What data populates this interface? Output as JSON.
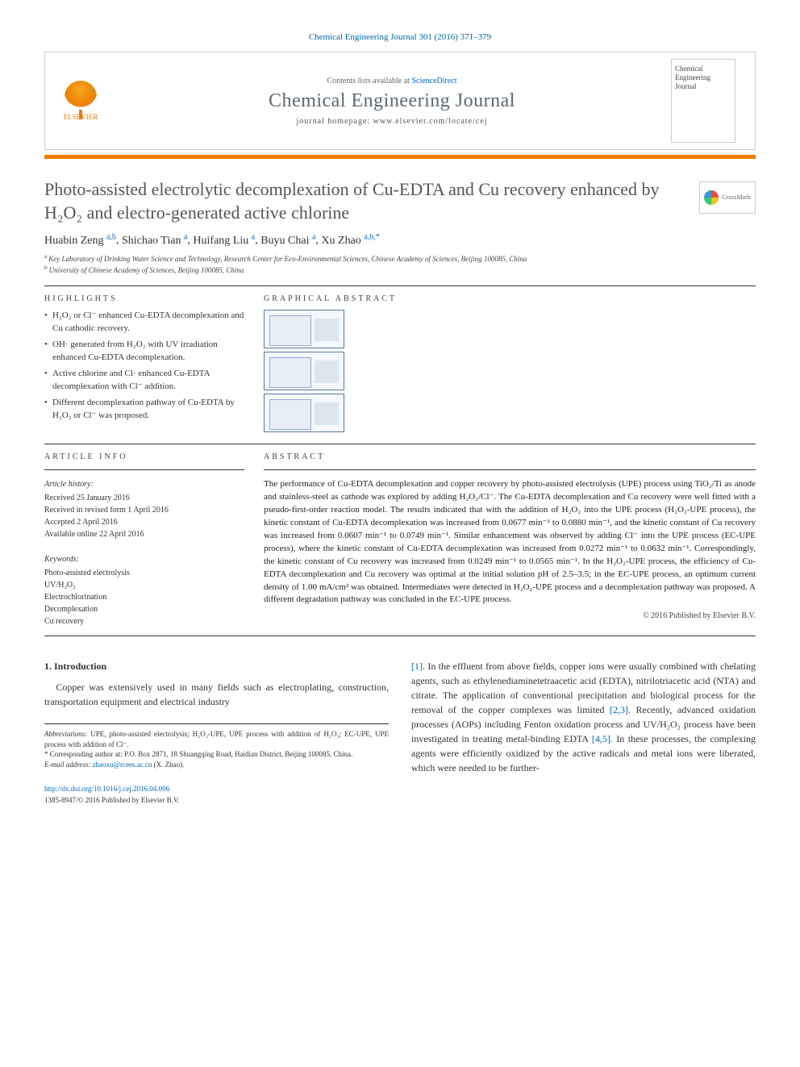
{
  "journal_ref": "Chemical Engineering Journal 301 (2016) 371–379",
  "header": {
    "contents_prefix": "Contents lists available at ",
    "contents_link": "ScienceDirect",
    "journal_name": "Chemical Engineering Journal",
    "homepage_prefix": "journal homepage: ",
    "homepage_url": "www.elsevier.com/locate/cej",
    "publisher_label": "ELSEVIER",
    "cover_text": "Chemical Engineering Journal"
  },
  "crossmark_label": "CrossMark",
  "title": "Photo-assisted electrolytic decomplexation of Cu-EDTA and Cu recovery enhanced by H₂O₂ and electro-generated active chlorine",
  "authors_html": "Huabin Zeng",
  "authors": [
    {
      "name": "Huabin Zeng",
      "aff": "a,b"
    },
    {
      "name": "Shichao Tian",
      "aff": "a"
    },
    {
      "name": "Huifang Liu",
      "aff": "a"
    },
    {
      "name": "Buyu Chai",
      "aff": "a"
    },
    {
      "name": "Xu Zhao",
      "aff": "a,b,*"
    }
  ],
  "affiliations": [
    {
      "sup": "a",
      "text": "Key Laboratory of Drinking Water Science and Technology, Research Center for Eco-Environmental Sciences, Chinese Academy of Sciences, Beijing 100085, China"
    },
    {
      "sup": "b",
      "text": "University of Chinese Academy of Sciences, Beijing 100085, China"
    }
  ],
  "highlights_label": "HIGHLIGHTS",
  "highlights": [
    "H₂O₂ or Cl⁻ enhanced Cu-EDTA decomplexation and Cu cathodic recovery.",
    "OH· generated from H₂O₂ with UV irradiation enhanced Cu-EDTA decomplexation.",
    "Active chlorine and Cl· enhanced Cu-EDTA decomplexation with Cl⁻ addition.",
    "Different decomplexation pathway of Cu-EDTA by H₂O₂ or Cl⁻ was proposed."
  ],
  "graphical_label": "GRAPHICAL ABSTRACT",
  "article_info_label": "ARTICLE INFO",
  "history_label": "Article history:",
  "history": [
    "Received 25 January 2016",
    "Received in revised form 1 April 2016",
    "Accepted 2 April 2016",
    "Available online 22 April 2016"
  ],
  "keywords_label": "Keywords:",
  "keywords": [
    "Photo-assisted electrolysis",
    "UV/H₂O₂",
    "Electrochlorination",
    "Decomplexation",
    "Cu recovery"
  ],
  "abstract_label": "ABSTRACT",
  "abstract": "The performance of Cu-EDTA decomplexation and copper recovery by photo-assisted electrolysis (UPE) process using TiO₂/Ti as anode and stainless-steel as cathode was explored by adding H₂O₂/Cl⁻. The Cu-EDTA decomplexation and Cu recovery were well fitted with a pseudo-first-order reaction model. The results indicated that with the addition of H₂O₂ into the UPE process (H₂O₂-UPE process), the kinetic constant of Cu-EDTA decomplexation was increased from 0.0677 min⁻¹ to 0.0880 min⁻¹, and the kinetic constant of Cu recovery was increased from 0.0607 min⁻¹ to 0.0749 min⁻¹. Similar enhancement was observed by adding Cl⁻ into the UPE process (EC-UPE process), where the kinetic constant of Cu-EDTA decomplexation was increased from 0.0272 min⁻¹ to 0.0632 min⁻¹. Correspondingly, the kinetic constant of Cu recovery was increased from 0.0249 min⁻¹ to 0.0565 min⁻¹. In the H₂O₂-UPE process, the efficiency of Cu-EDTA decomplexation and Cu recovery was optimal at the initial solution pH of 2.5–3.5; in the EC-UPE process, an optimum current density of 1.00 mA/cm² was obtained. Intermediates were detected in H₂O₂-UPE process and a decomplexation pathway was proposed. A different degradation pathway was concluded in the EC-UPE process.",
  "copyright": "© 2016 Published by Elsevier B.V.",
  "intro_heading": "1. Introduction",
  "intro_col1": "Copper was extensively used in many fields such as electroplating, construction, transportation equipment and electrical industry",
  "intro_col2_part1": ". In the effluent from above fields, copper ions were usually combined with chelating agents, such as ethylenediaminetetraacetic acid (EDTA), nitrilotriacetic acid (NTA) and citrate. The application of conventional precipitation and biological process for the removal of the copper complexes was limited ",
  "intro_col2_part2": ". Recently, advanced oxidation processes (AOPs) including Fenton oxidation process and UV/H₂O₂ process have been investigated in treating metal-binding EDTA ",
  "intro_col2_part3": ". In these processes, the complexing agents were efficiently oxidized by the active radicals and metal ions were liberated, which were needed to be further-",
  "refs": {
    "r1": "[1]",
    "r23": "[2,3]",
    "r45": "[4,5]"
  },
  "footnotes": {
    "abbrev_label": "Abbreviations:",
    "abbrev_text": " UPE, photo-assisted electrolysis; H₂O₂-UPE, UPE process with addition of H₂O₂; EC-UPE, UPE process with addition of Cl⁻.",
    "corr_symbol": "*",
    "corr_text": " Corresponding author at: P.O. Box 2871, 18 Shuangqing Road, Haidian District, Beijing 100085, China.",
    "email_label": "E-mail address: ",
    "email": "zhaoxu@rcees.ac.cn",
    "email_suffix": " (X. Zhao)."
  },
  "doi_url": "http://dx.doi.org/10.1016/j.cej.2016.04.006",
  "issn_line": "1385-8947/© 2016 Published by Elsevier B.V.",
  "colors": {
    "accent_orange": "#ee7d00",
    "link_blue": "#0066cc",
    "title_gray": "#555555"
  }
}
